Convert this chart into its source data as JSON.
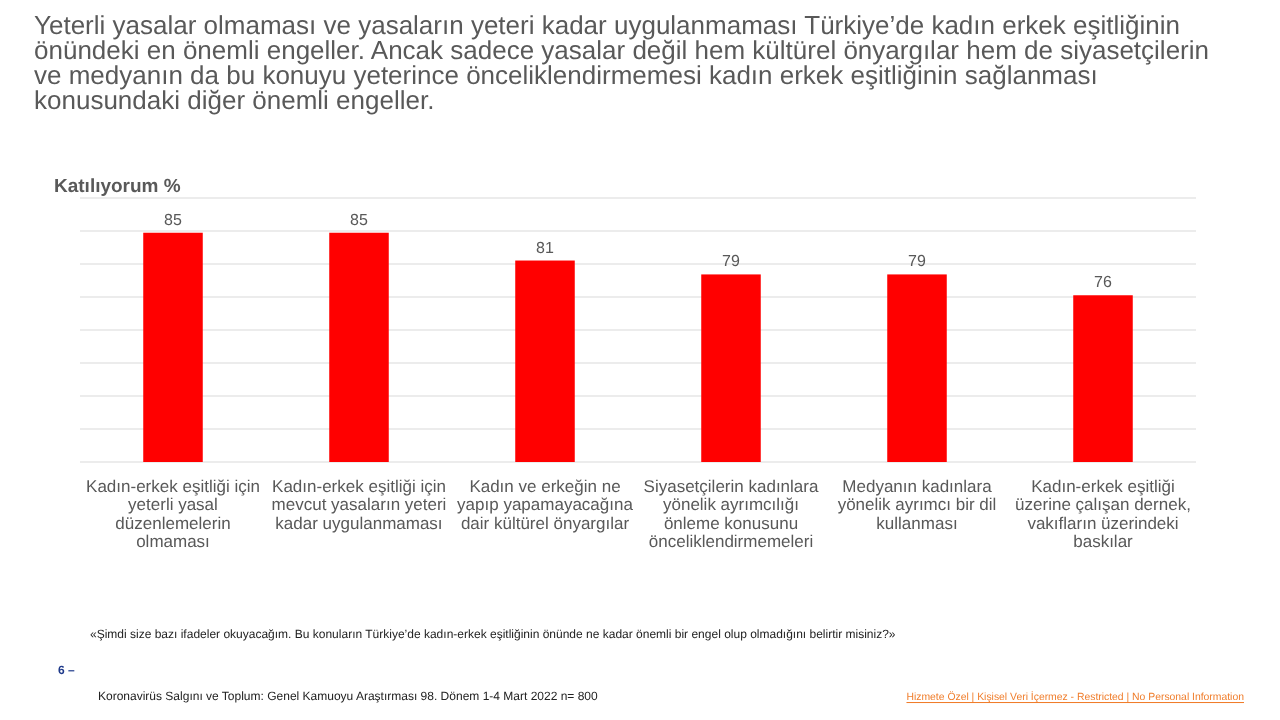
{
  "chart_data": {
    "type": "bar",
    "title": "Yeterli yasalar olmaması ve yasaların yeteri kadar uygulanmaması Türkiye’de kadın erkek eşitliğinin önündeki en önemli engeller. Ancak sadece yasalar değil hem kültürel önyargılar hem de siyasetçilerin ve medyanın da bu konuyu yeterince önceliklendirmemesi kadın erkek eşitliğinin sağlanması konusundaki diğer önemli engeller.",
    "ylabel": "Katılıyorum %",
    "categories": [
      "Kadın-erkek eşitliği için yeterli yasal düzenlemelerin olmaması",
      "Kadın-erkek eşitliği için mevcut yasaların yeteri kadar uygulanmaması",
      "Kadın ve erkeğin ne yapıp yapamayacağına dair kültürel önyargılar",
      "Siyasetçilerin kadınlara yönelik ayrımcılığı önleme konusunu önceliklendirmemeleri",
      "Medyanın kadınlara yönelik ayrımcı bir dil kullanması",
      "Kadın-erkek eşitliği üzerine çalışan dernek, vakıfların üzerindeki baskılar"
    ],
    "values": [
      85,
      85,
      81,
      79,
      79,
      76
    ],
    "color": "#ff0000",
    "data_labels": true,
    "ylim": [
      52,
      90
    ],
    "yticks": [
      {
        "value": 52,
        "label": null
      },
      {
        "value": 56.75,
        "label": null
      },
      {
        "value": 61.5,
        "label": null
      },
      {
        "value": 66.25,
        "label": null
      },
      {
        "value": 71,
        "label": null
      },
      {
        "value": 75.75,
        "label": null
      },
      {
        "value": 80.5,
        "label": null
      },
      {
        "value": 85.25,
        "label": null
      },
      {
        "value": 90,
        "label": null
      }
    ],
    "grid": "y",
    "tick_labels": "x",
    "annotations": [
      "«Şimdi size bazı ifadeler okuyacağım. Bu konuların Türkiye’de kadın-erkek eşitliğinin önünde ne kadar önemli bir engel olup olmadığını belirtir misiniz?»",
      "6 –",
      "Koronavirüs  Salgını ve Toplum: Genel Kamuoyu Araştırması 98. Dönem  1-4 Mart 2022 n= 800",
      "Hizmete Özel | Kişisel Veri İçermez - Restricted | No Personal Information"
    ]
  }
}
